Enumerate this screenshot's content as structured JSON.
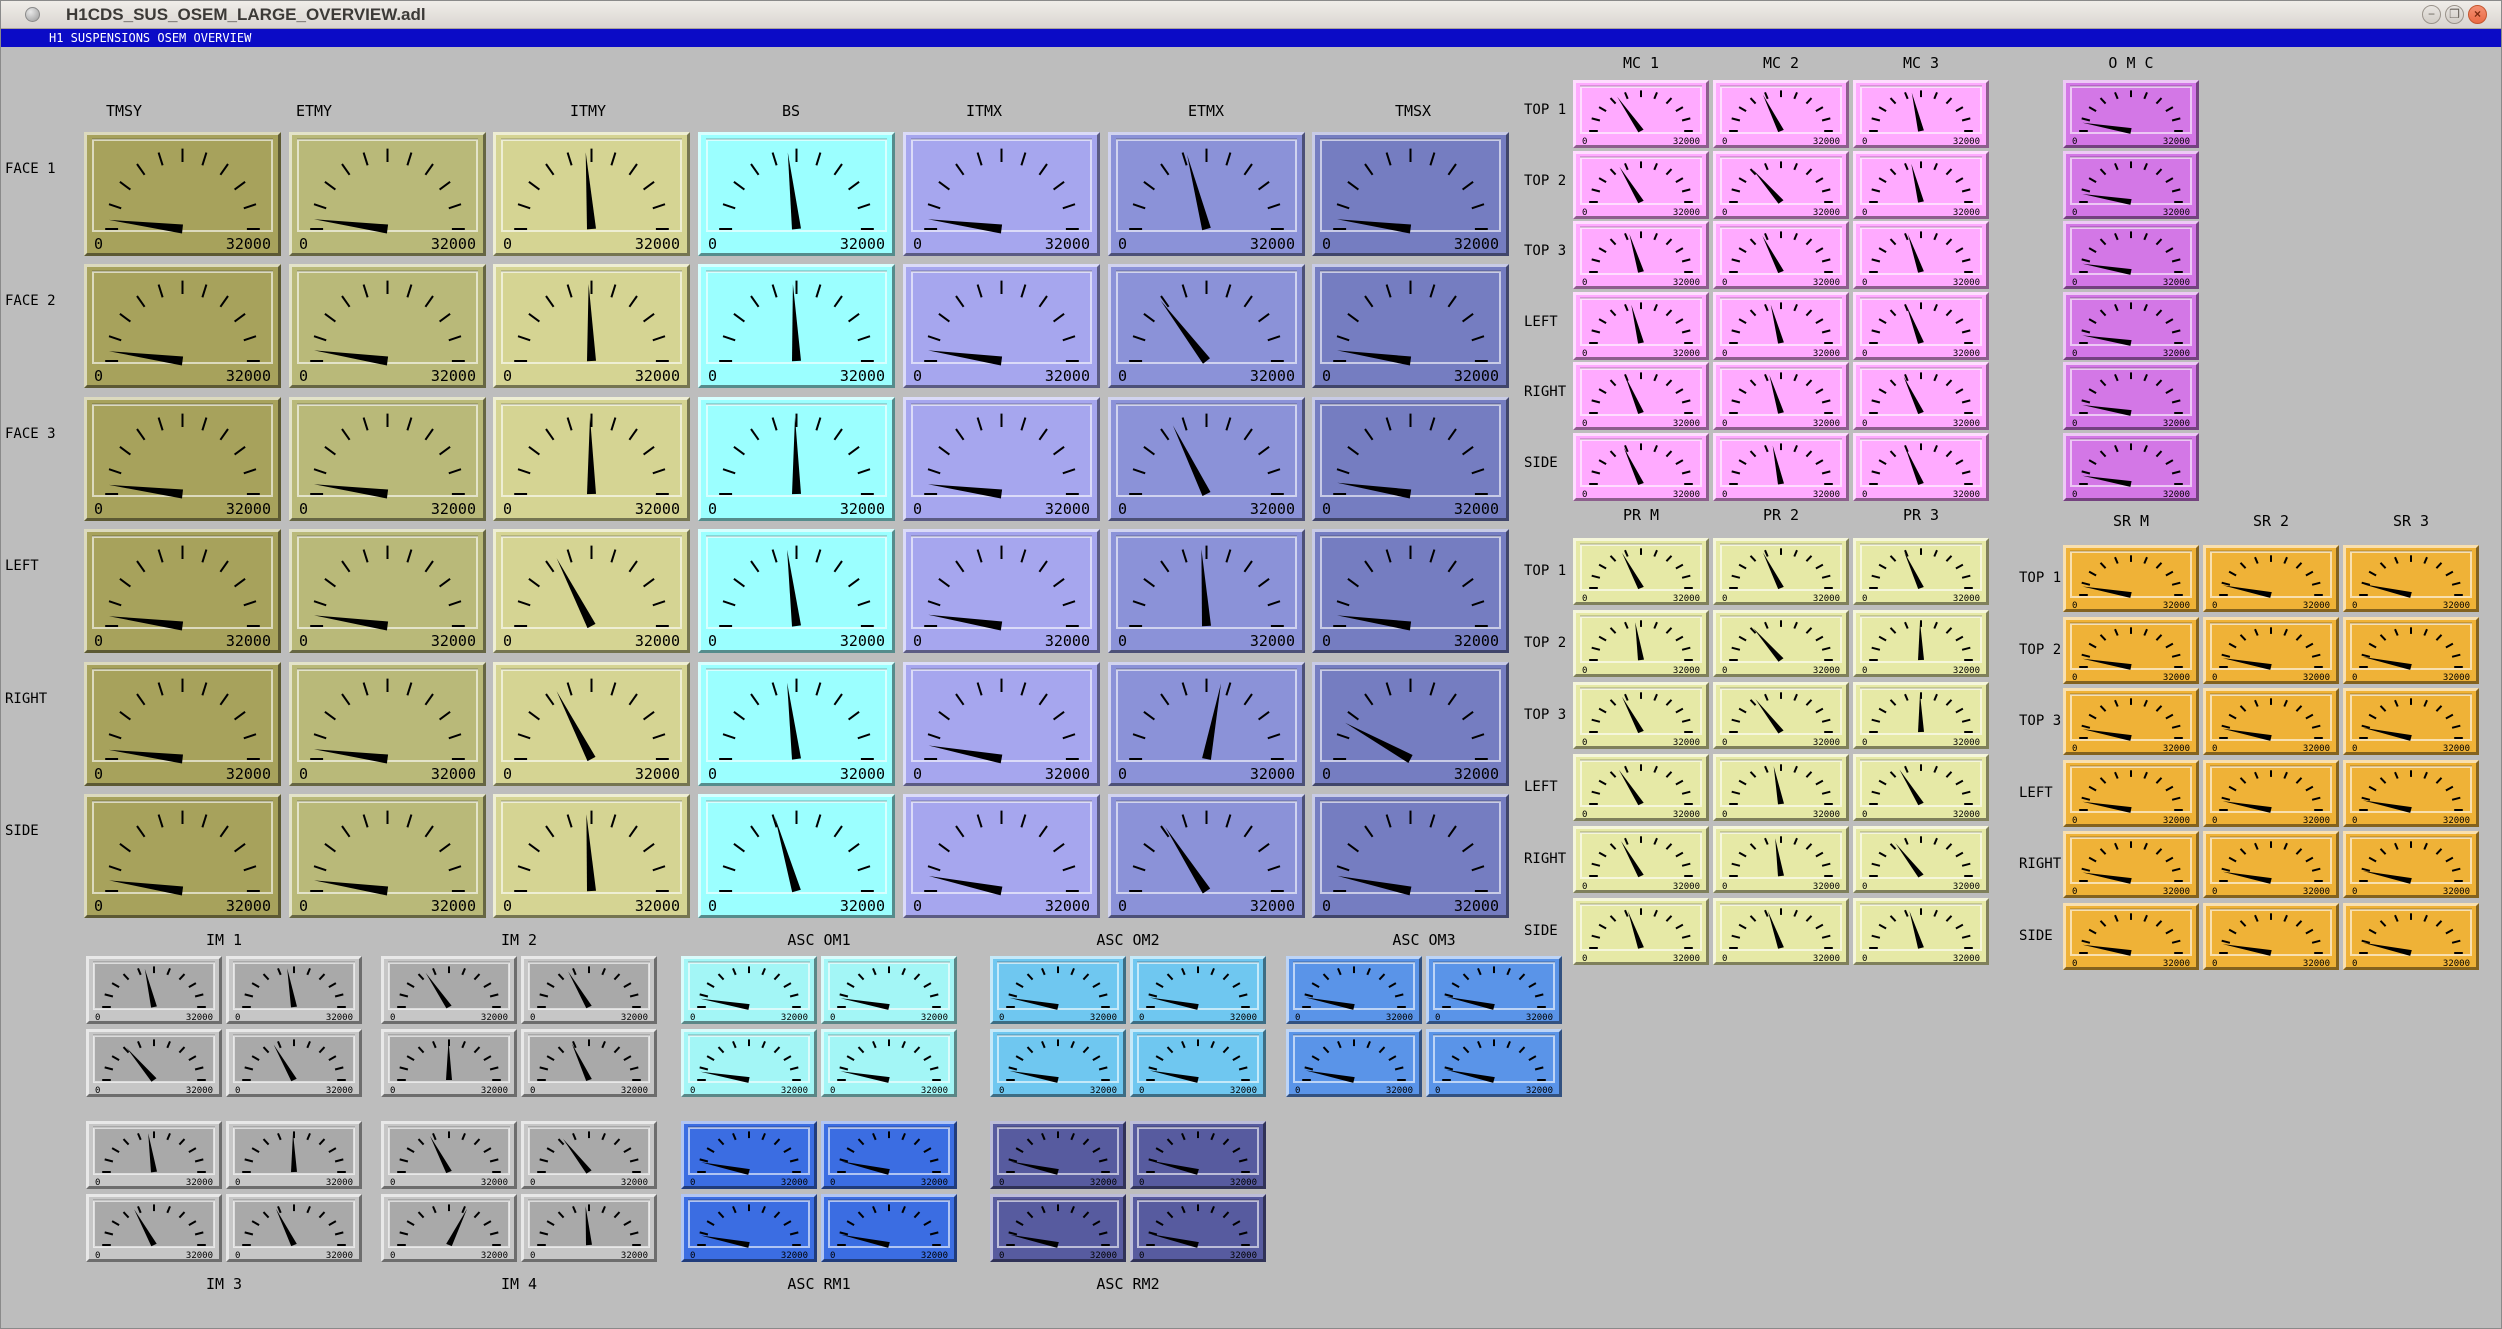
{
  "window": {
    "title": "H1CDS_SUS_OSEM_LARGE_OVERVIEW.adl",
    "controls": {
      "minimize": "−",
      "maximize": "❒",
      "close": "×"
    }
  },
  "menu_bar": {
    "title": "H1 SUSPENSIONS OSEM OVERVIEW",
    "bg": "#0b0bc6"
  },
  "meter_scale": {
    "min": "0",
    "max": "32000"
  },
  "colors": {
    "background": "#bdbdbd",
    "mc": "#ffaaff",
    "omc": "#d377e6",
    "pr": "#e6e9a6",
    "sr": "#efb237",
    "im_face": "#a9a9a9",
    "im_frame": "#c6c6c6",
    "om1": "#a3f6f6",
    "om2": "#6fc7f0",
    "om3": "#5a94e8",
    "rm1": "#3b6de2",
    "rm2": "#575b9f"
  },
  "chart_data": {
    "note": "all meters are analog dials, range 0-32000, values estimated from needle angles"
  },
  "main_grid": {
    "row_labels": [
      "FACE 1",
      "FACE 2",
      "FACE 3",
      "LEFT",
      "RIGHT",
      "SIDE"
    ],
    "columns": [
      {
        "label": "TMSY",
        "color": "#a7a25c",
        "values": [
          1200,
          1300,
          1200,
          1300,
          1200,
          1400
        ]
      },
      {
        "label": "ETMY",
        "color": "#b9b979",
        "values": [
          1300,
          1400,
          1300,
          1400,
          1300,
          1400
        ]
      },
      {
        "label": "ITMY",
        "color": "#d5d493",
        "values": [
          15200,
          15600,
          15800,
          11000,
          11000,
          15300
        ]
      },
      {
        "label": "BS",
        "color": "#9bffff",
        "values": [
          14800,
          15500,
          15800,
          14700,
          14700,
          13000
        ]
      },
      {
        "label": "ITMX",
        "color": "#a6a6ee",
        "values": [
          1300,
          1400,
          1300,
          1500,
          1800,
          2000
        ]
      },
      {
        "label": "ETMX",
        "color": "#8b92d8",
        "values": [
          13300,
          9200,
          11200,
          15300,
          18000,
          10000
        ]
      },
      {
        "label": "TMSX",
        "color": "#757dc1",
        "values": [
          1300,
          1400,
          1500,
          1400,
          5000,
          2000
        ]
      }
    ]
  },
  "mc_grid": {
    "row_labels": [
      "TOP 1",
      "TOP 2",
      "TOP 3",
      "LEFT",
      "RIGHT",
      "SIDE"
    ],
    "columns": [
      {
        "label": "MC 1",
        "values": [
          10900,
          11450,
          13600,
          14000,
          12700,
          12400
        ]
      },
      {
        "label": "MC 2",
        "values": [
          12200,
          9900,
          12100,
          13900,
          13600,
          14300
        ]
      },
      {
        "label": "MC 3",
        "values": [
          14100,
          14000,
          13300,
          13000,
          12350,
          12700
        ]
      }
    ]
  },
  "omc_column": {
    "label": "O M C",
    "values": [
      2200,
      2100,
      2200,
      2000,
      2100,
      2200
    ]
  },
  "pr_grid": {
    "row_labels": [
      "TOP 1",
      "TOP 2",
      "TOP 3",
      "LEFT",
      "RIGHT",
      "SIDE"
    ],
    "columns": [
      {
        "label": "PR M",
        "values": [
          12000,
          14800,
          12000,
          11300,
          11800,
          13300
        ]
      },
      {
        "label": "PR 2",
        "values": [
          12200,
          10000,
          10500,
          14500,
          14800,
          13300
        ]
      },
      {
        "label": "PR 3",
        "values": [
          12500,
          15800,
          15800,
          11450,
          10500,
          13600
        ]
      }
    ]
  },
  "sr_grid": {
    "row_labels": [
      "TOP 1",
      "TOP 2",
      "TOP 3",
      "LEFT",
      "RIGHT",
      "SIDE"
    ],
    "columns": [
      {
        "label": "SR M",
        "values": [
          2300,
          2200,
          2400,
          2200,
          2300,
          2200
        ]
      },
      {
        "label": "SR 2",
        "values": [
          2600,
          2400,
          2500,
          2400,
          2500,
          2400
        ]
      },
      {
        "label": "SR 3",
        "values": [
          2900,
          2700,
          2800,
          2600,
          2700,
          2800
        ]
      }
    ]
  },
  "im_groups": [
    {
      "label": "IM 1",
      "label_pos": "above",
      "values": [
        14100,
        14600,
        10000,
        11700
      ]
    },
    {
      "label": "IM 2",
      "label_pos": "above",
      "values": [
        11000,
        11600,
        15900,
        12400
      ]
    },
    {
      "label": "IM 3",
      "label_pos": "below",
      "values": [
        14800,
        15800,
        11800,
        12200
      ]
    },
    {
      "label": "IM 4",
      "label_pos": "below",
      "values": [
        12000,
        10400,
        19800,
        15300
      ]
    }
  ],
  "asc_groups": [
    {
      "label": "ASC OM1",
      "label_pos": "above",
      "color": "#a3f6f6",
      "values": [
        2200,
        2300,
        2200,
        2300
      ]
    },
    {
      "label": "ASC OM2",
      "label_pos": "above",
      "color": "#6fc7f0",
      "values": [
        2400,
        2500,
        2400,
        2500
      ]
    },
    {
      "label": "ASC OM3",
      "label_pos": "above",
      "color": "#5a94e8",
      "values": [
        2500,
        2700,
        2500,
        2700
      ]
    },
    {
      "label": "ASC RM1",
      "label_pos": "below",
      "color": "#3b6de2",
      "values": [
        2600,
        2800,
        2500,
        2700
      ]
    },
    {
      "label": "ASC RM2",
      "label_pos": "below",
      "color": "#575b9f",
      "values": [
        2800,
        3000,
        2700,
        2900
      ]
    }
  ]
}
